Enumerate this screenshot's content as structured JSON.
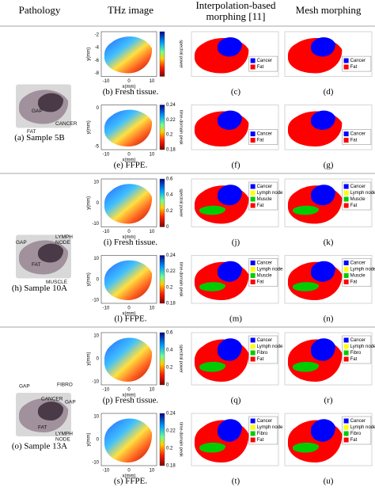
{
  "headers": [
    [
      "Pathology"
    ],
    [
      "THz image"
    ],
    [
      "Interpolation-based",
      "morphing [11]"
    ],
    [
      "Mesh morphing"
    ]
  ],
  "sections": [
    {
      "sample": "(a) Sample 5B",
      "tissue_labels": [
        "GAP",
        "CANCER",
        "FAT"
      ],
      "legend": [
        {
          "name": "Cancer",
          "color": "#0000ff"
        },
        {
          "name": "Fat",
          "color": "#ff0000"
        }
      ],
      "rows": [
        {
          "captions": [
            "(b) Fresh tissue.",
            "(c)",
            "(d)"
          ],
          "thz": {
            "ylabel": "y(mm)",
            "xlabel": "x(mm)",
            "yticks": [
              -2,
              -4,
              -6,
              -8
            ],
            "xticks": [
              -10,
              0,
              10
            ],
            "colorbar_label": "spectral power"
          }
        },
        {
          "captions": [
            "(e) FFPE.",
            "(f)",
            "(g)"
          ],
          "thz": {
            "ylabel": "y(mm)",
            "xlabel": "x(mm)",
            "yticks": [
              0,
              -5
            ],
            "xticks": [
              -10,
              0,
              10
            ],
            "colorbar_label": "time-domain peak",
            "colorbar_ticks": [
              0.24,
              0.22,
              0.2,
              0.18
            ]
          }
        }
      ]
    },
    {
      "sample": "(h) Sample 10A",
      "tissue_labels": [
        "GAP",
        "LYMPH",
        "NODE",
        "FAT",
        "MUSCLE"
      ],
      "legend": [
        {
          "name": "Cancer",
          "color": "#0000ff"
        },
        {
          "name": "Lymph node",
          "color": "#ffff00"
        },
        {
          "name": "Muscle",
          "color": "#00cc00"
        },
        {
          "name": "Fat",
          "color": "#ff0000"
        }
      ],
      "rows": [
        {
          "captions": [
            "(i) Fresh tissue.",
            "(j)",
            "(k)"
          ],
          "thz": {
            "ylabel": "y(mm)",
            "xlabel": "x(mm)",
            "yticks": [
              10,
              0,
              -10
            ],
            "xticks": [
              -10,
              0,
              10
            ],
            "colorbar_label": "spectral power",
            "colorbar_ticks": [
              0.6,
              0.4,
              0.2,
              0
            ]
          }
        },
        {
          "captions": [
            "(l) FFPE.",
            "(m)",
            "(n)"
          ],
          "thz": {
            "ylabel": "y(mm)",
            "xlabel": "x(mm)",
            "yticks": [
              10,
              0,
              -10
            ],
            "xticks": [
              -10,
              0,
              10
            ],
            "colorbar_label": "time-domain peak",
            "colorbar_ticks": [
              0.24,
              0.22,
              0.2,
              0.18
            ]
          }
        }
      ]
    },
    {
      "sample": "(o) Sample 13A",
      "tissue_labels": [
        "GAP",
        "CANCER",
        "FIBRO",
        "GAP",
        "FAT",
        "LYMPH",
        "NODE"
      ],
      "legend": [
        {
          "name": "Cancer",
          "color": "#0000ff"
        },
        {
          "name": "Lymph node",
          "color": "#ffff00"
        },
        {
          "name": "Fibro",
          "color": "#00cc00"
        },
        {
          "name": "Fat",
          "color": "#ff0000"
        }
      ],
      "rows": [
        {
          "captions": [
            "(p) Fresh tissue.",
            "(q)",
            "(r)"
          ],
          "thz": {
            "ylabel": "y(mm)",
            "xlabel": "x(mm)",
            "yticks": [
              10,
              0,
              -10
            ],
            "xticks": [
              -10,
              0,
              10
            ],
            "colorbar_label": "spectral power",
            "colorbar_ticks": [
              0.6,
              0.4,
              0.2,
              0
            ]
          }
        },
        {
          "captions": [
            "(s) FFPE.",
            "(t)",
            "(u)"
          ],
          "thz": {
            "ylabel": "y(mm)",
            "xlabel": "x(mm)",
            "yticks": [
              10,
              0,
              -10
            ],
            "xticks": [
              -10,
              0,
              10
            ],
            "colorbar_label": "time-domain peak",
            "colorbar_ticks": [
              0.24,
              0.22,
              0.2,
              0.18
            ]
          }
        }
      ]
    }
  ]
}
